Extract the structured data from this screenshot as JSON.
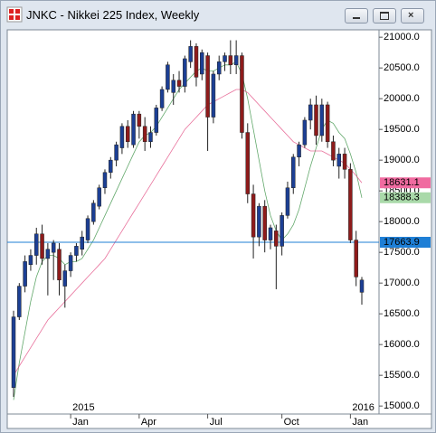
{
  "window_title": "JNKC - Nikkei 225 Index, Weekly",
  "chart_data": {
    "type": "candlestick",
    "up_color": "#1c3f94",
    "down_color": "#8e1b1b",
    "ylim": [
      14870,
      21120
    ],
    "yticks": [
      {
        "value": 15000,
        "label": "15000.0"
      },
      {
        "value": 15500,
        "label": "15500.0"
      },
      {
        "value": 16000,
        "label": "16000.0"
      },
      {
        "value": 16500,
        "label": "16500.0"
      },
      {
        "value": 17000,
        "label": "17000.0"
      },
      {
        "value": 17500,
        "label": "17500.0"
      },
      {
        "value": 18000,
        "label": "18000.0"
      },
      {
        "value": 18500,
        "label": "18500.0"
      },
      {
        "value": 19000,
        "label": "19000.0"
      },
      {
        "value": 19500,
        "label": "19500.0"
      },
      {
        "value": 20000,
        "label": "20000.0"
      },
      {
        "value": 20500,
        "label": "20500.0"
      },
      {
        "value": 21000,
        "label": "21000.0"
      }
    ],
    "categories": [
      null,
      null,
      null,
      null,
      null,
      null,
      null,
      null,
      null,
      null,
      "Jan",
      null,
      null,
      null,
      null,
      null,
      null,
      null,
      null,
      null,
      null,
      null,
      "Apr",
      null,
      null,
      null,
      null,
      null,
      null,
      null,
      null,
      null,
      null,
      null,
      "Jul",
      null,
      null,
      null,
      null,
      null,
      null,
      null,
      null,
      null,
      null,
      null,
      null,
      "Oct",
      null,
      null,
      null,
      null,
      null,
      null,
      null,
      null,
      null,
      null,
      null,
      "Jan",
      null,
      null
    ],
    "year_categories": [
      null,
      null,
      null,
      null,
      null,
      null,
      null,
      null,
      null,
      null,
      "2015",
      null,
      null,
      null,
      null,
      null,
      null,
      null,
      null,
      null,
      null,
      null,
      null,
      null,
      null,
      null,
      null,
      null,
      null,
      null,
      null,
      null,
      null,
      null,
      null,
      null,
      null,
      null,
      null,
      null,
      null,
      null,
      null,
      null,
      null,
      null,
      null,
      null,
      null,
      null,
      null,
      null,
      null,
      null,
      null,
      null,
      null,
      null,
      null,
      "2016",
      null,
      null
    ],
    "open": [
      15300,
      16450,
      16950,
      17300,
      17450,
      17800,
      17400,
      17500,
      17550,
      16950,
      17200,
      17450,
      17550,
      17700,
      18000,
      18250,
      18550,
      18800,
      19000,
      19200,
      19550,
      19250,
      19750,
      19550,
      19300,
      19450,
      19850,
      20150,
      20100,
      20300,
      20200,
      20600,
      20850,
      20400,
      20700,
      19700,
      20400,
      20600,
      20700,
      20550,
      20700,
      19450,
      18450,
      17750,
      18250,
      17700,
      17850,
      17600,
      18100,
      18550,
      19050,
      19250,
      19650,
      19900,
      19400,
      19900,
      19300,
      18900,
      19100,
      18850,
      17700,
      16850
    ],
    "high": [
      16550,
      17000,
      17450,
      17550,
      17900,
      17950,
      17650,
      17700,
      17650,
      17300,
      17500,
      17650,
      17850,
      18100,
      18350,
      18600,
      18850,
      19050,
      19300,
      19600,
      19650,
      19800,
      19800,
      19700,
      19550,
      19900,
      20200,
      20600,
      20400,
      20450,
      20700,
      20950,
      20900,
      20800,
      20750,
      20450,
      20700,
      20750,
      20950,
      20950,
      20750,
      19600,
      18600,
      18300,
      18350,
      17950,
      17950,
      18150,
      18650,
      19100,
      19300,
      19700,
      20000,
      20050,
      20000,
      19950,
      19400,
      19200,
      19200,
      18950,
      17850,
      17100
    ],
    "low": [
      15150,
      16400,
      16850,
      17200,
      17300,
      17300,
      16800,
      17050,
      16800,
      16600,
      17100,
      17350,
      17450,
      17650,
      17950,
      18200,
      18450,
      18700,
      18900,
      19100,
      19200,
      19200,
      19350,
      19150,
      19200,
      19400,
      19800,
      20100,
      19900,
      20100,
      20100,
      20500,
      20200,
      20300,
      19150,
      19600,
      20300,
      20450,
      20400,
      20400,
      19350,
      18300,
      17400,
      17600,
      17500,
      17550,
      16900,
      17450,
      18050,
      18450,
      18900,
      19200,
      19500,
      19250,
      19300,
      19200,
      18900,
      18700,
      18700,
      17650,
      16950,
      16650
    ],
    "close": [
      16450,
      16950,
      17350,
      17450,
      17800,
      17400,
      17550,
      17650,
      17050,
      17200,
      17450,
      17600,
      17750,
      18050,
      18300,
      18550,
      18800,
      19000,
      19250,
      19550,
      19300,
      19750,
      19550,
      19300,
      19450,
      19850,
      20150,
      20550,
      20300,
      20200,
      20650,
      20850,
      20350,
      20750,
      19700,
      20400,
      20600,
      20700,
      20550,
      20700,
      19450,
      18450,
      17750,
      18250,
      17700,
      17900,
      17600,
      18100,
      18550,
      19050,
      19250,
      19650,
      19900,
      19400,
      19900,
      19300,
      19000,
      19100,
      18850,
      17700,
      17100,
      17050
    ],
    "series": [
      {
        "color": "#2e8b3a",
        "values": [
          15100,
          15700,
          16200,
          16700,
          17100,
          17350,
          17450,
          17450,
          17400,
          17300,
          17350,
          17350,
          17400,
          17550,
          17700,
          17900,
          18100,
          18300,
          18500,
          18700,
          18900,
          19100,
          19300,
          19400,
          19450,
          19550,
          19700,
          19850,
          20000,
          20150,
          20250,
          20350,
          20450,
          20500,
          20450,
          20450,
          20500,
          20550,
          20550,
          20600,
          20400,
          20000,
          19500,
          19000,
          18500,
          18100,
          17850,
          17700,
          17800,
          17950,
          18200,
          18550,
          18900,
          19200,
          19500,
          19650,
          19600,
          19450,
          19350,
          19100,
          18800,
          18388.3
        ]
      },
      {
        "color": "#e0407a",
        "values": [
          15500,
          15650,
          15800,
          15950,
          16100,
          16250,
          16400,
          16500,
          16600,
          16700,
          16800,
          16900,
          17000,
          17100,
          17200,
          17300,
          17400,
          17550,
          17700,
          17850,
          18000,
          18150,
          18300,
          18450,
          18600,
          18750,
          18900,
          19050,
          19200,
          19350,
          19500,
          19600,
          19700,
          19800,
          19900,
          19950,
          20000,
          20050,
          20100,
          20150,
          20150,
          20100,
          20000,
          19900,
          19800,
          19700,
          19600,
          19500,
          19400,
          19300,
          19250,
          19200,
          19150,
          19150,
          19150,
          19100,
          19050,
          19000,
          18950,
          18850,
          18750,
          18631.1
        ]
      }
    ],
    "hline": 17663.9,
    "hline_color": "#1e7fd6"
  }
}
